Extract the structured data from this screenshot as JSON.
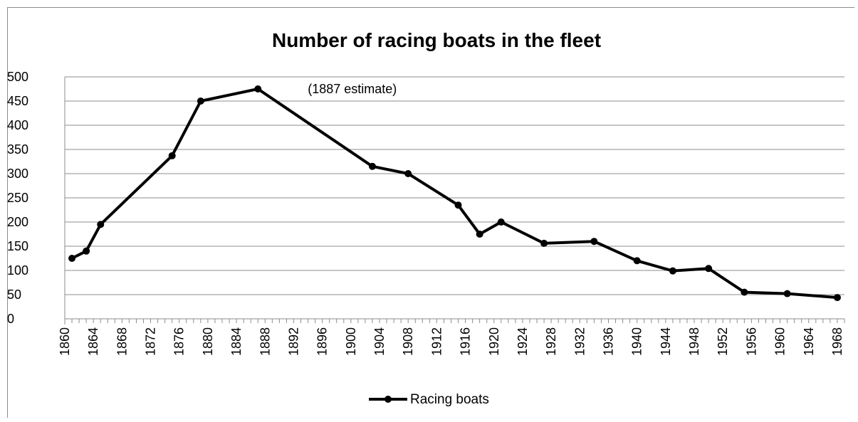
{
  "chart_data": {
    "type": "line",
    "title": "Number of racing boats in the fleet",
    "xlabel": "",
    "ylabel": "",
    "xlim": [
      1860,
      1969
    ],
    "ylim": [
      0,
      500
    ],
    "y_ticks": [
      "0",
      "50",
      "100",
      "150",
      "200",
      "250",
      "300",
      "350",
      "400",
      "450",
      "500"
    ],
    "x_ticks": [
      "1860",
      "1864",
      "1868",
      "1872",
      "1876",
      "1880",
      "1884",
      "1888",
      "1892",
      "1896",
      "1900",
      "1904",
      "1908",
      "1912",
      "1916",
      "1920",
      "1924",
      "1928",
      "1932",
      "1936",
      "1940",
      "1944",
      "1948",
      "1952",
      "1956",
      "1960",
      "1964",
      "1968"
    ],
    "grid": true,
    "legend_position": "bottom",
    "series": [
      {
        "name": "Racing boats",
        "color": "#000000",
        "x": [
          1861,
          1863,
          1865,
          1875,
          1879,
          1887,
          1903,
          1908,
          1915,
          1918,
          1921,
          1927,
          1934,
          1940,
          1945,
          1950,
          1955,
          1961,
          1968
        ],
        "y": [
          125,
          140,
          195,
          337,
          450,
          475,
          315,
          300,
          235,
          175,
          200,
          156,
          160,
          120,
          99,
          104,
          55,
          52,
          44
        ]
      }
    ],
    "annotations": [
      {
        "text": "(1887 estimate)",
        "x": 1887,
        "y": 475
      }
    ]
  }
}
